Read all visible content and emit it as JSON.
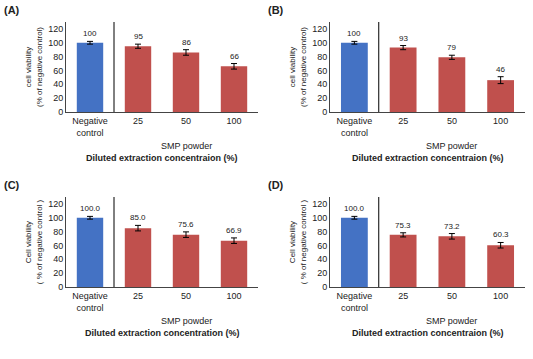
{
  "chart_data": [
    {
      "type": "bar",
      "title": "(A)",
      "categories": [
        "Negative\ncontrol",
        "25",
        "50",
        "100"
      ],
      "values": [
        100,
        95,
        86,
        66
      ],
      "errors": [
        2,
        3,
        4,
        4
      ],
      "colors": [
        "#4472C4",
        "#C0504D",
        "#C0504D",
        "#C0504D"
      ],
      "ylabel": "cell viability\n(% of negative control)",
      "xlabel": "Diluted extraction concentraion (%)",
      "annotations": [
        "SMP powder"
      ],
      "ylim": [
        0,
        130
      ],
      "yticks": [
        0,
        20,
        40,
        60,
        80,
        100,
        120
      ],
      "grid": false,
      "data_labels": true
    },
    {
      "type": "bar",
      "title": "(B)",
      "categories": [
        "Negative\ncontrol",
        "25",
        "50",
        "100"
      ],
      "values": [
        100,
        93,
        79,
        46
      ],
      "errors": [
        2,
        3,
        3,
        5
      ],
      "colors": [
        "#4472C4",
        "#C0504D",
        "#C0504D",
        "#C0504D"
      ],
      "ylabel": "cell viability\n(% of negative control)",
      "xlabel": "Diluted extraction concentraion (%)",
      "annotations": [
        "SMP powder"
      ],
      "ylim": [
        0,
        130
      ],
      "yticks": [
        0,
        20,
        40,
        60,
        80,
        100,
        120
      ],
      "grid": false,
      "data_labels": true
    },
    {
      "type": "bar",
      "title": "(C)",
      "categories": [
        "Negative\ncontrol",
        "25",
        "50",
        "100"
      ],
      "values": [
        100.0,
        85.0,
        75.6,
        66.9
      ],
      "value_labels": [
        "100.0",
        "85.0",
        "75.6",
        "66.9"
      ],
      "errors": [
        2,
        4,
        4,
        4
      ],
      "colors": [
        "#4472C4",
        "#C0504D",
        "#C0504D",
        "#C0504D"
      ],
      "ylabel": "Cell viability\n( % of negative control )",
      "xlabel": "Diluted extraction concentration (%)",
      "annotations": [
        "SMP powder"
      ],
      "ylim": [
        0,
        130
      ],
      "yticks": [
        0,
        20,
        40,
        60,
        80,
        100,
        120
      ],
      "grid": false,
      "data_labels": true
    },
    {
      "type": "bar",
      "title": "(D)",
      "categories": [
        "Negative\ncontrol",
        "25",
        "50",
        "100"
      ],
      "values": [
        100.0,
        75.3,
        73.2,
        60.3
      ],
      "value_labels": [
        "100.0",
        "75.3",
        "73.2",
        "60.3"
      ],
      "errors": [
        2,
        3,
        4,
        4
      ],
      "colors": [
        "#4472C4",
        "#C0504D",
        "#C0504D",
        "#C0504D"
      ],
      "ylabel": "Cell viability\n( % of negative control )",
      "xlabel": "Diluted extraction concentraion (%)",
      "annotations": [
        "SMP powder"
      ],
      "ylim": [
        0,
        130
      ],
      "yticks": [
        0,
        20,
        40,
        60,
        80,
        100,
        120
      ],
      "grid": false,
      "data_labels": true
    }
  ]
}
